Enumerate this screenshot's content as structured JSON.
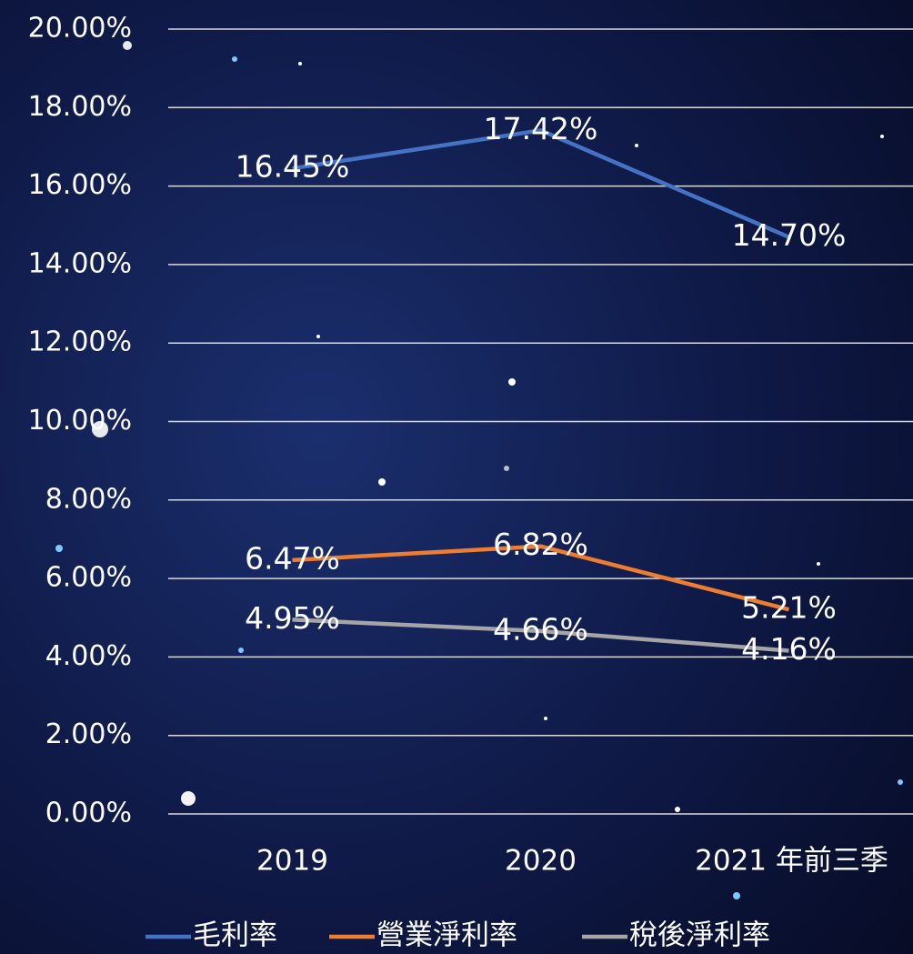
{
  "chart_data": {
    "type": "line",
    "categories": [
      "2019",
      "2020",
      "2021 年前三季"
    ],
    "series": [
      {
        "name": "毛利率",
        "color": "#4472c4",
        "values": [
          16.45,
          17.42,
          14.7
        ],
        "value_labels": [
          "16.45%",
          "17.42%",
          "14.70%"
        ]
      },
      {
        "name": "營業淨利率",
        "color": "#ed7d31",
        "values": [
          6.47,
          6.82,
          5.21
        ],
        "value_labels": [
          "6.47%",
          "6.82%",
          "5.21%"
        ]
      },
      {
        "name": "稅後淨利率",
        "color": "#a5a5a5",
        "values": [
          4.95,
          4.66,
          4.16
        ],
        "value_labels": [
          "4.95%",
          "4.66%",
          "4.16%"
        ]
      }
    ],
    "ylim": [
      0,
      20
    ],
    "yticks": [
      {
        "value": 0,
        "label": "0.00%"
      },
      {
        "value": 2,
        "label": "2.00%"
      },
      {
        "value": 4,
        "label": "4.00%"
      },
      {
        "value": 6,
        "label": "6.00%"
      },
      {
        "value": 8,
        "label": "8.00%"
      },
      {
        "value": 10,
        "label": "10.00%"
      },
      {
        "value": 12,
        "label": "12.00%"
      },
      {
        "value": 14,
        "label": "14.00%"
      },
      {
        "value": 16,
        "label": "16.00%"
      },
      {
        "value": 18,
        "label": "18.00%"
      },
      {
        "value": 20,
        "label": "20.00%"
      }
    ],
    "grid": true,
    "legend": "bottom"
  }
}
